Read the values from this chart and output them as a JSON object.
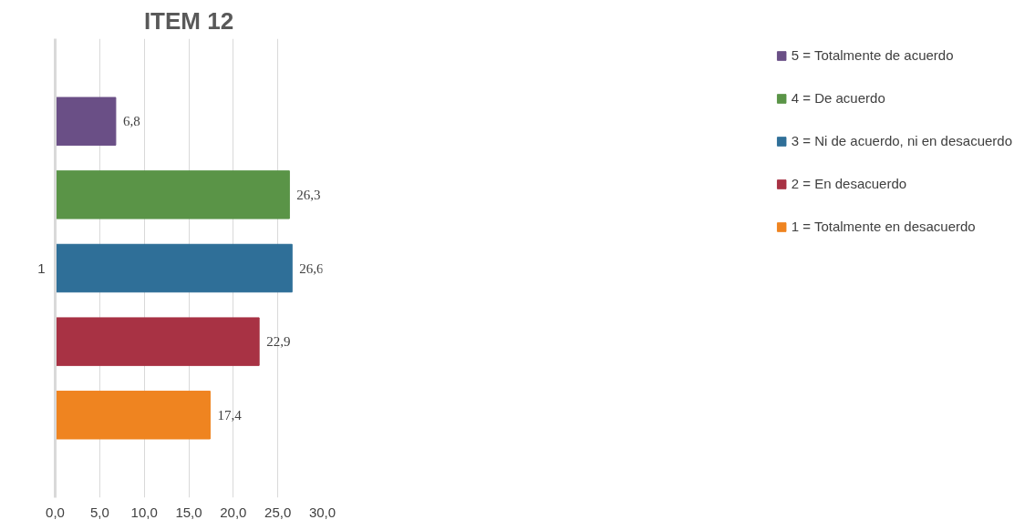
{
  "chart_data": {
    "type": "bar",
    "orientation": "horizontal",
    "title": "ITEM 12",
    "categories": [
      "1"
    ],
    "series": [
      {
        "name": "5 = Totalmente de acuerdo",
        "color": "#6a4f86",
        "values": [
          6.8
        ],
        "value_labels": [
          "6,8"
        ]
      },
      {
        "name": "4 = De acuerdo",
        "color": "#5a9447",
        "values": [
          26.3
        ],
        "value_labels": [
          "26,3"
        ]
      },
      {
        "name": "3 = Ni de acuerdo, ni en desacuerdo",
        "color": "#2f6f98",
        "values": [
          26.6
        ],
        "value_labels": [
          "26,6"
        ]
      },
      {
        "name": "2 = En desacuerdo",
        "color": "#a83244",
        "values": [
          22.9
        ],
        "value_labels": [
          "22,9"
        ]
      },
      {
        "name": "1 = Totalmente en desacuerdo",
        "color": "#ef8420",
        "values": [
          17.4
        ],
        "value_labels": [
          "17,4"
        ]
      }
    ],
    "xlim": [
      0,
      30
    ],
    "xticks": [
      {
        "value": 0,
        "label": "0,0"
      },
      {
        "value": 5,
        "label": "5,0"
      },
      {
        "value": 10,
        "label": "10,0"
      },
      {
        "value": 15,
        "label": "15,0"
      },
      {
        "value": 20,
        "label": "20,0"
      },
      {
        "value": 25,
        "label": "25,0"
      },
      {
        "value": 30,
        "label": "30,0"
      }
    ],
    "grid": "x",
    "legend": "right"
  }
}
